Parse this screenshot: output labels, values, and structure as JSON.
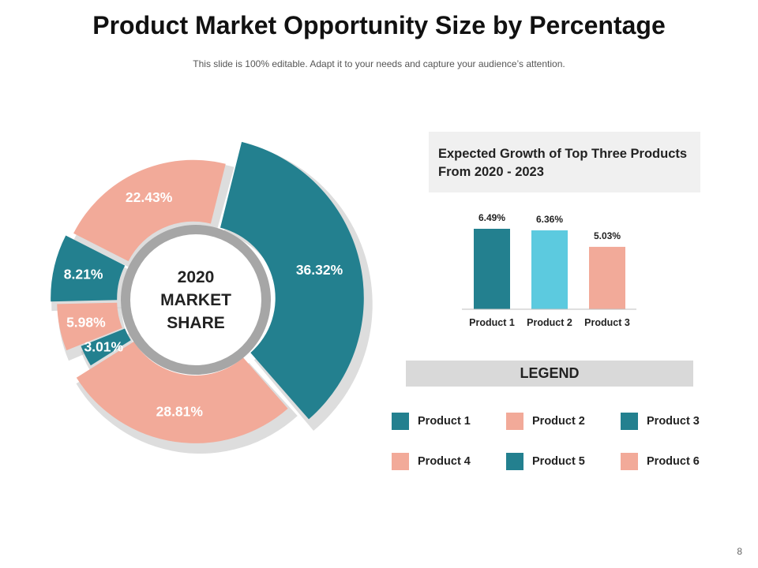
{
  "title": "Product Market Opportunity Size by Percentage",
  "subtitle": "This slide is 100% editable. Adapt it to your needs and capture your audience’s attention.",
  "colors": {
    "teal": "#23808f",
    "salmon": "#f2aa99",
    "light_blue": "#5ccadf",
    "shadow": "#b3b3b3",
    "ring": "#a6a6a6"
  },
  "chart_data": [
    {
      "type": "pie",
      "variant": "exploded-donut",
      "center_label": [
        "2020",
        "MARKET",
        "SHARE"
      ],
      "segments": [
        {
          "name": "Product 1",
          "value": 36.32,
          "label": "36.32%",
          "color": "#23808f"
        },
        {
          "name": "Product 2",
          "value": 28.81,
          "label": "28.81%",
          "color": "#f2aa99"
        },
        {
          "name": "Product 3",
          "value": 3.01,
          "label": "3.01%",
          "color": "#23808f"
        },
        {
          "name": "Product 4",
          "value": 5.98,
          "label": "5.98%",
          "color": "#f2aa99"
        },
        {
          "name": "Product 5",
          "value": 8.21,
          "label": "8.21%",
          "color": "#23808f"
        },
        {
          "name": "Product 6",
          "value": 22.43,
          "label": "22.43%",
          "color": "#f2aa99"
        }
      ]
    },
    {
      "type": "bar",
      "title": "Expected Growth of Top Three Products From 2020 -  2023",
      "categories": [
        "Product 1",
        "Product 2",
        "Product 3"
      ],
      "values": [
        6.49,
        6.36,
        5.03
      ],
      "value_labels": [
        "6.49%",
        "6.36%",
        "5.03%"
      ],
      "colors": [
        "#23808f",
        "#5ccadf",
        "#f2aa99"
      ],
      "ylim": [
        0,
        6.49
      ],
      "grid": false
    }
  ],
  "legend": {
    "title": "LEGEND",
    "items": [
      {
        "label": "Product 1",
        "color": "#23808f"
      },
      {
        "label": "Product 2",
        "color": "#f2aa99"
      },
      {
        "label": "Product 3",
        "color": "#23808f"
      },
      {
        "label": "Product 4",
        "color": "#f2aa99"
      },
      {
        "label": "Product 5",
        "color": "#23808f"
      },
      {
        "label": "Product 6",
        "color": "#f2aa99"
      }
    ]
  },
  "page_number": "8"
}
